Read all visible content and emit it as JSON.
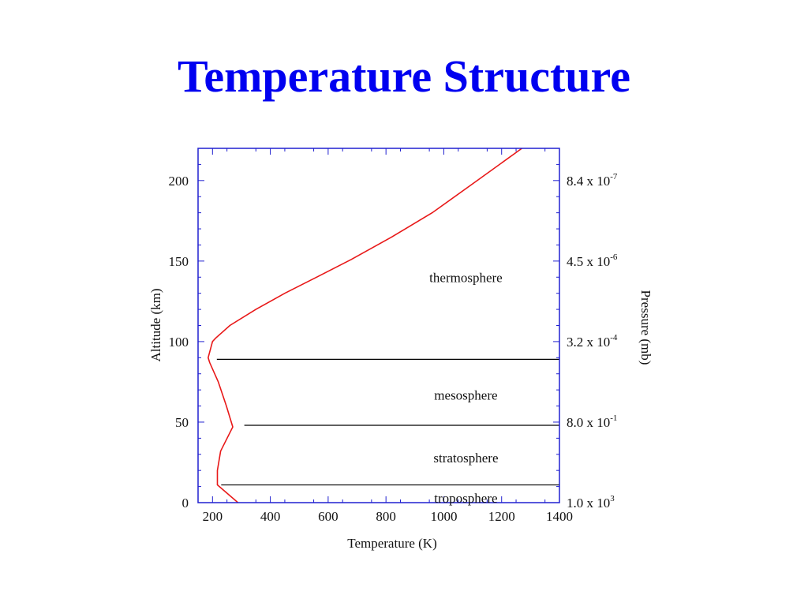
{
  "slide": {
    "title": "Temperature Structure"
  },
  "colors": {
    "title": "#0000f0",
    "frame": "#2020d0",
    "profile": "#e81818",
    "boundary": "#000000"
  },
  "chart_data": {
    "type": "line",
    "title": "",
    "xlabel": "Temperature (K)",
    "ylabel": "Altitude (km)",
    "y2label": "Pressure (mb)",
    "xlim": [
      150,
      1400
    ],
    "ylim": [
      0,
      220
    ],
    "xticks": [
      200,
      400,
      600,
      800,
      1000,
      1200,
      1400
    ],
    "yticks": [
      0,
      50,
      100,
      150,
      200
    ],
    "right_ticks": [
      {
        "altitude": 0,
        "mantissa": "1.0 x 10",
        "exp": "3"
      },
      {
        "altitude": 50,
        "mantissa": "8.0 x 10",
        "exp": "-1"
      },
      {
        "altitude": 100,
        "mantissa": "3.2 x 10",
        "exp": "-4"
      },
      {
        "altitude": 150,
        "mantissa": "4.5 x 10",
        "exp": "-6"
      },
      {
        "altitude": 200,
        "mantissa": "8.4 x 10",
        "exp": "-7"
      }
    ],
    "series": [
      {
        "x": [
          288,
          217,
          217,
          228,
          270,
          248,
          220,
          190,
          185,
          200,
          210,
          260,
          350,
          450,
          560,
          680,
          820,
          960,
          1100,
          1270
        ],
        "y": [
          0,
          11,
          20,
          32,
          47,
          60,
          75,
          87,
          90,
          100,
          102,
          110,
          120,
          130,
          140,
          151,
          165,
          180,
          198,
          220
        ]
      }
    ],
    "boundaries": [
      {
        "altitude": 11,
        "x_start": 230
      },
      {
        "altitude": 48,
        "x_start": 310
      },
      {
        "altitude": 89,
        "x_start": 215
      }
    ],
    "layers": [
      {
        "name": "thermosphere",
        "x": 1000,
        "y": 140
      },
      {
        "name": "mesosphere",
        "x": 1000,
        "y": 67
      },
      {
        "name": "stratosphere",
        "x": 1000,
        "y": 28
      },
      {
        "name": "troposphere",
        "x": 1000,
        "y": 3
      }
    ]
  }
}
